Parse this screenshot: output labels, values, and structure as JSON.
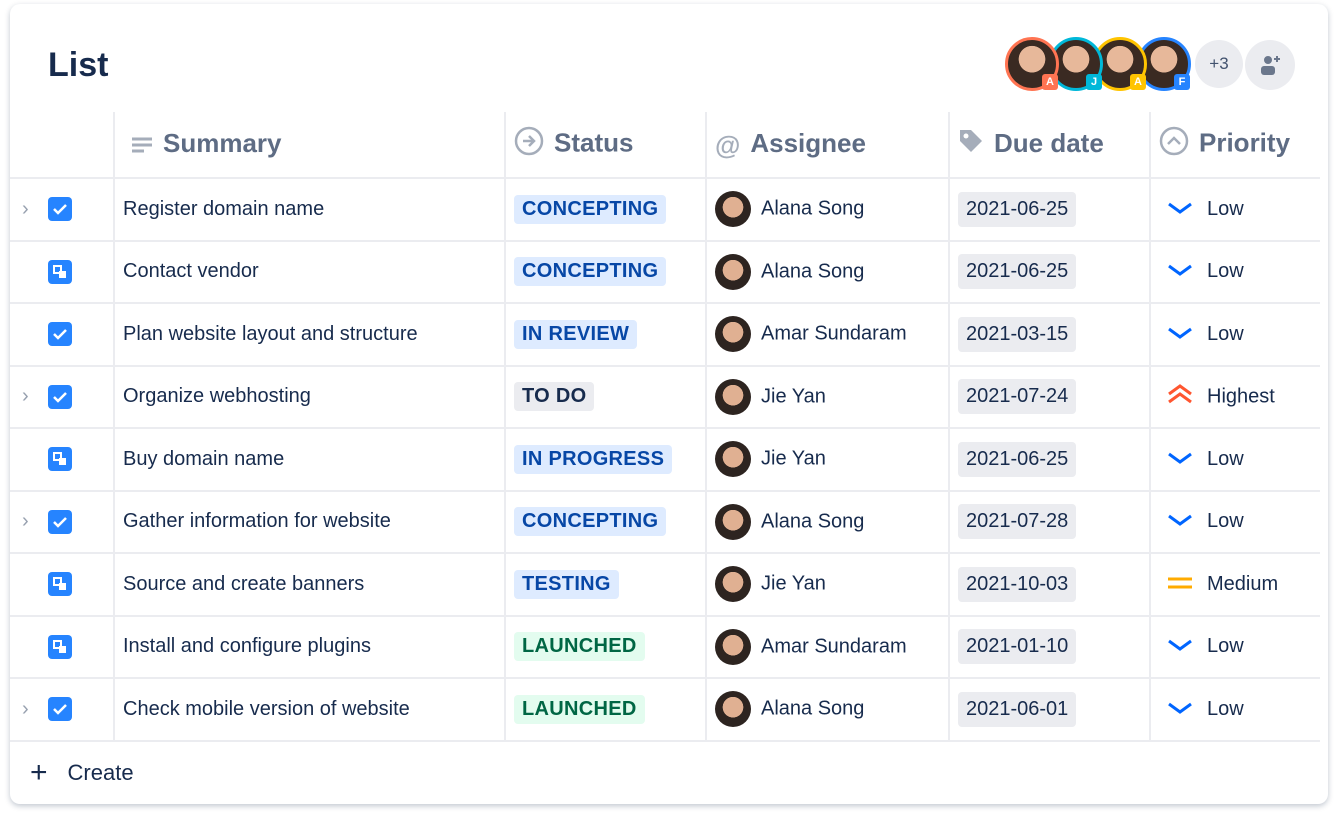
{
  "title": "List",
  "collaborators": [
    {
      "initial": "A",
      "color": "#ff7452"
    },
    {
      "initial": "J",
      "color": "#00b8d9"
    },
    {
      "initial": "A",
      "color": "#ffc400"
    },
    {
      "initial": "F",
      "color": "#2684ff"
    }
  ],
  "more_count": "+3",
  "columns": {
    "summary": "Summary",
    "status": "Status",
    "assignee": "Assignee",
    "due": "Due date",
    "priority": "Priority"
  },
  "rows": [
    {
      "expand": true,
      "type": "task",
      "summary": "Register domain name",
      "status": "CONCEPTING",
      "status_color": "blue",
      "assignee": "Alana Song",
      "due": "2021-06-25",
      "priority": "Low"
    },
    {
      "expand": false,
      "type": "subtask",
      "summary": "Contact vendor",
      "status": "CONCEPTING",
      "status_color": "blue",
      "assignee": "Alana Song",
      "due": "2021-06-25",
      "priority": "Low"
    },
    {
      "expand": false,
      "type": "task",
      "summary": "Plan website layout and structure",
      "status": "IN REVIEW",
      "status_color": "blue",
      "assignee": "Amar Sundaram",
      "due": "2021-03-15",
      "priority": "Low"
    },
    {
      "expand": true,
      "type": "task",
      "summary": "Organize webhosting",
      "status": "TO DO",
      "status_color": "grey",
      "assignee": "Jie Yan",
      "due": "2021-07-24",
      "priority": "Highest"
    },
    {
      "expand": false,
      "type": "subtask",
      "summary": "Buy domain name",
      "status": "IN PROGRESS",
      "status_color": "blue",
      "assignee": "Jie Yan",
      "due": "2021-06-25",
      "priority": "Low"
    },
    {
      "expand": true,
      "type": "task",
      "summary": "Gather information for website",
      "status": "CONCEPTING",
      "status_color": "blue",
      "assignee": "Alana Song",
      "due": "2021-07-28",
      "priority": "Low"
    },
    {
      "expand": false,
      "type": "subtask",
      "summary": "Source and create banners",
      "status": "TESTING",
      "status_color": "blue",
      "assignee": "Jie Yan",
      "due": "2021-10-03",
      "priority": "Medium"
    },
    {
      "expand": false,
      "type": "subtask",
      "summary": "Install and configure plugins",
      "status": "LAUNCHED",
      "status_color": "green",
      "assignee": "Amar Sundaram",
      "due": "2021-01-10",
      "priority": "Low"
    },
    {
      "expand": true,
      "type": "task",
      "summary": "Check mobile version of website",
      "status": "LAUNCHED",
      "status_color": "green",
      "assignee": "Alana Song",
      "due": "2021-06-01",
      "priority": "Low"
    }
  ],
  "create_label": "Create"
}
